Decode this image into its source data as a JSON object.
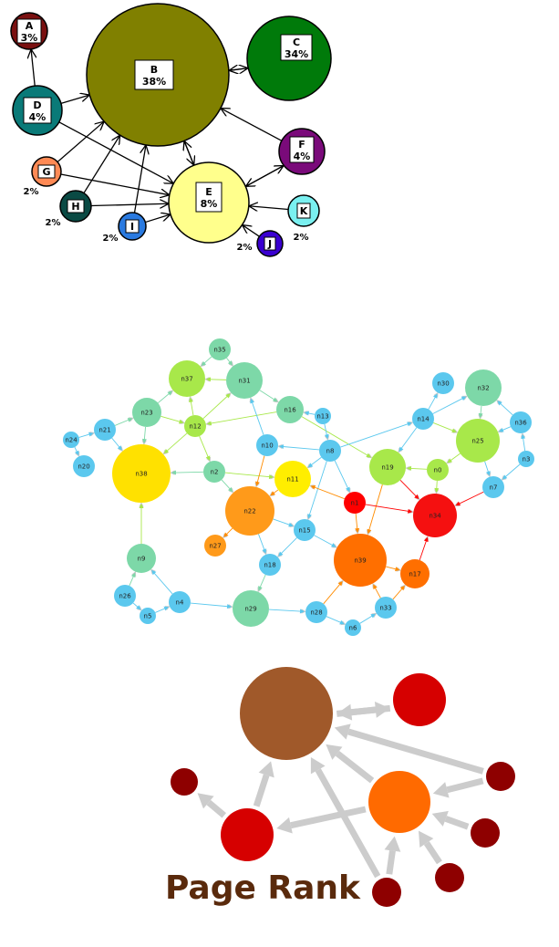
{
  "panel1": {
    "nodes": [
      {
        "id": "A",
        "pct": "3%",
        "color": "#7a1010"
      },
      {
        "id": "B",
        "pct": "38%",
        "color": "#808000"
      },
      {
        "id": "C",
        "pct": "34%",
        "color": "#007a0a"
      },
      {
        "id": "D",
        "pct": "4%",
        "color": "#0a7a78"
      },
      {
        "id": "E",
        "pct": "8%",
        "color": "#ffff8c"
      },
      {
        "id": "F",
        "pct": "4%",
        "color": "#7a0a7a"
      },
      {
        "id": "G",
        "pct": "2%",
        "color": "#ff8a55"
      },
      {
        "id": "H",
        "pct": "2%",
        "color": "#0a4a44"
      },
      {
        "id": "I",
        "pct": "2%",
        "color": "#2a7ae0"
      },
      {
        "id": "J",
        "pct": "2%",
        "color": "#3a00d0"
      },
      {
        "id": "K",
        "pct": "2%",
        "color": "#7af0f0"
      }
    ]
  },
  "panel2": {
    "nodes": [
      "n0",
      "n1",
      "n2",
      "n3",
      "n4",
      "n5",
      "n6",
      "n7",
      "n8",
      "n9",
      "n10",
      "n11",
      "n12",
      "n13",
      "n14",
      "n15",
      "n16",
      "n17",
      "n18",
      "n19",
      "n20",
      "n21",
      "n22",
      "n23",
      "n24",
      "n25",
      "n26",
      "n27",
      "n28",
      "n29",
      "n30",
      "n31",
      "n32",
      "n33",
      "n34",
      "n35",
      "n36",
      "n37",
      "n38",
      "n39"
    ]
  },
  "panel3": {
    "title": "Page Rank",
    "title_color": "#5a2a0c"
  }
}
